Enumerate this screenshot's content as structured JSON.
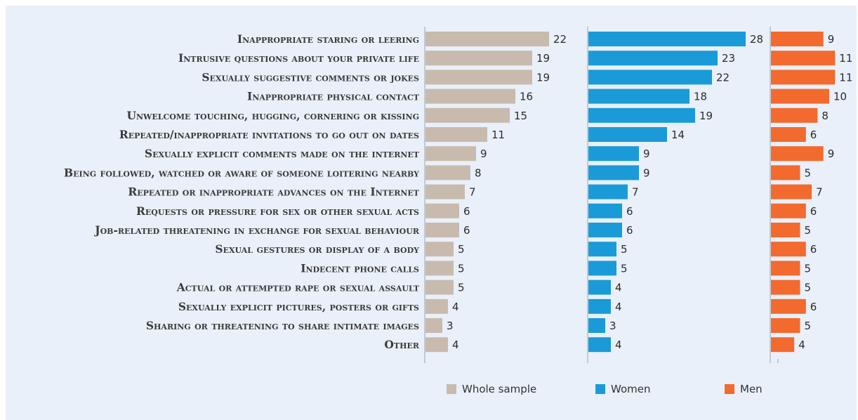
{
  "chart_data": {
    "type": "bar",
    "orientation": "horizontal",
    "categories": [
      "Inappropriate staring or leering",
      "Intrusive questions about your private life",
      "Sexually suggestive comments or jokes",
      "Inappropriate physical contact",
      "Unwelcome touching, hugging, cornering or kissing",
      "Repeated/inappropriate invitations to go out on dates",
      "Sexually explicit comments made on the internet",
      "Being followed, watched or aware of someone loitering nearby",
      "Repeated or inappropriate advances on the Internet",
      "Requests or pressure for sex or other sexual acts",
      "Job-related threatening in exchange for sexual behaviour",
      "Sexual gestures or display of a body",
      "Indecent phone calls",
      "Actual or attempted rape or sexual assault",
      "Sexually explicit pictures, posters or gifts",
      "Sharing or threatening to share intimate images",
      "Other"
    ],
    "series": [
      {
        "name": "Whole sample",
        "color": "#c8bbad",
        "values": [
          22,
          19,
          19,
          16,
          15,
          11,
          9,
          8,
          7,
          6,
          6,
          5,
          5,
          5,
          4,
          3,
          4
        ]
      },
      {
        "name": "Women",
        "color": "#1a9bd7",
        "values": [
          28,
          23,
          22,
          18,
          19,
          14,
          9,
          9,
          7,
          6,
          6,
          5,
          5,
          4,
          4,
          3,
          4
        ]
      },
      {
        "name": "Men",
        "color": "#f26a2e",
        "values": [
          9,
          11,
          11,
          10,
          8,
          6,
          9,
          5,
          7,
          6,
          5,
          6,
          5,
          5,
          6,
          5,
          4
        ]
      }
    ],
    "legend_position": "bottom",
    "grid": false
  }
}
